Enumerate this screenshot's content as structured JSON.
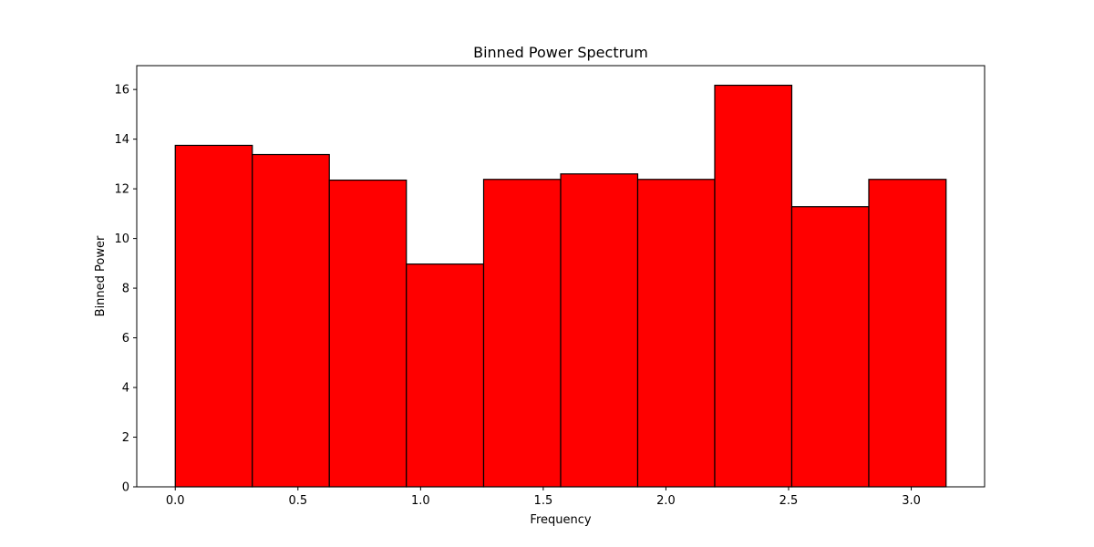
{
  "chart_data": {
    "type": "bar",
    "title": "Binned Power Spectrum",
    "xlabel": "Frequency",
    "ylabel": "Binned Power",
    "xlim": [
      -0.157,
      3.299
    ],
    "ylim": [
      0,
      16.96
    ],
    "bin_edges": [
      0.0,
      0.314,
      0.628,
      0.942,
      1.257,
      1.571,
      1.885,
      2.199,
      2.513,
      2.827,
      3.142
    ],
    "values": [
      13.75,
      13.38,
      12.35,
      8.97,
      12.38,
      12.6,
      12.38,
      16.17,
      11.28,
      12.38
    ],
    "x_ticks": [
      0.0,
      0.5,
      1.0,
      1.5,
      2.0,
      2.5,
      3.0
    ],
    "x_tick_labels": [
      "0.0",
      "0.5",
      "1.0",
      "1.5",
      "2.0",
      "2.5",
      "3.0"
    ],
    "y_ticks": [
      0,
      2,
      4,
      6,
      8,
      10,
      12,
      14,
      16
    ],
    "y_tick_labels": [
      "0",
      "2",
      "4",
      "6",
      "8",
      "10",
      "12",
      "14",
      "16"
    ],
    "grid": false,
    "colors": {
      "bar_fill": "#ff0000",
      "bar_edge": "#000000"
    }
  }
}
